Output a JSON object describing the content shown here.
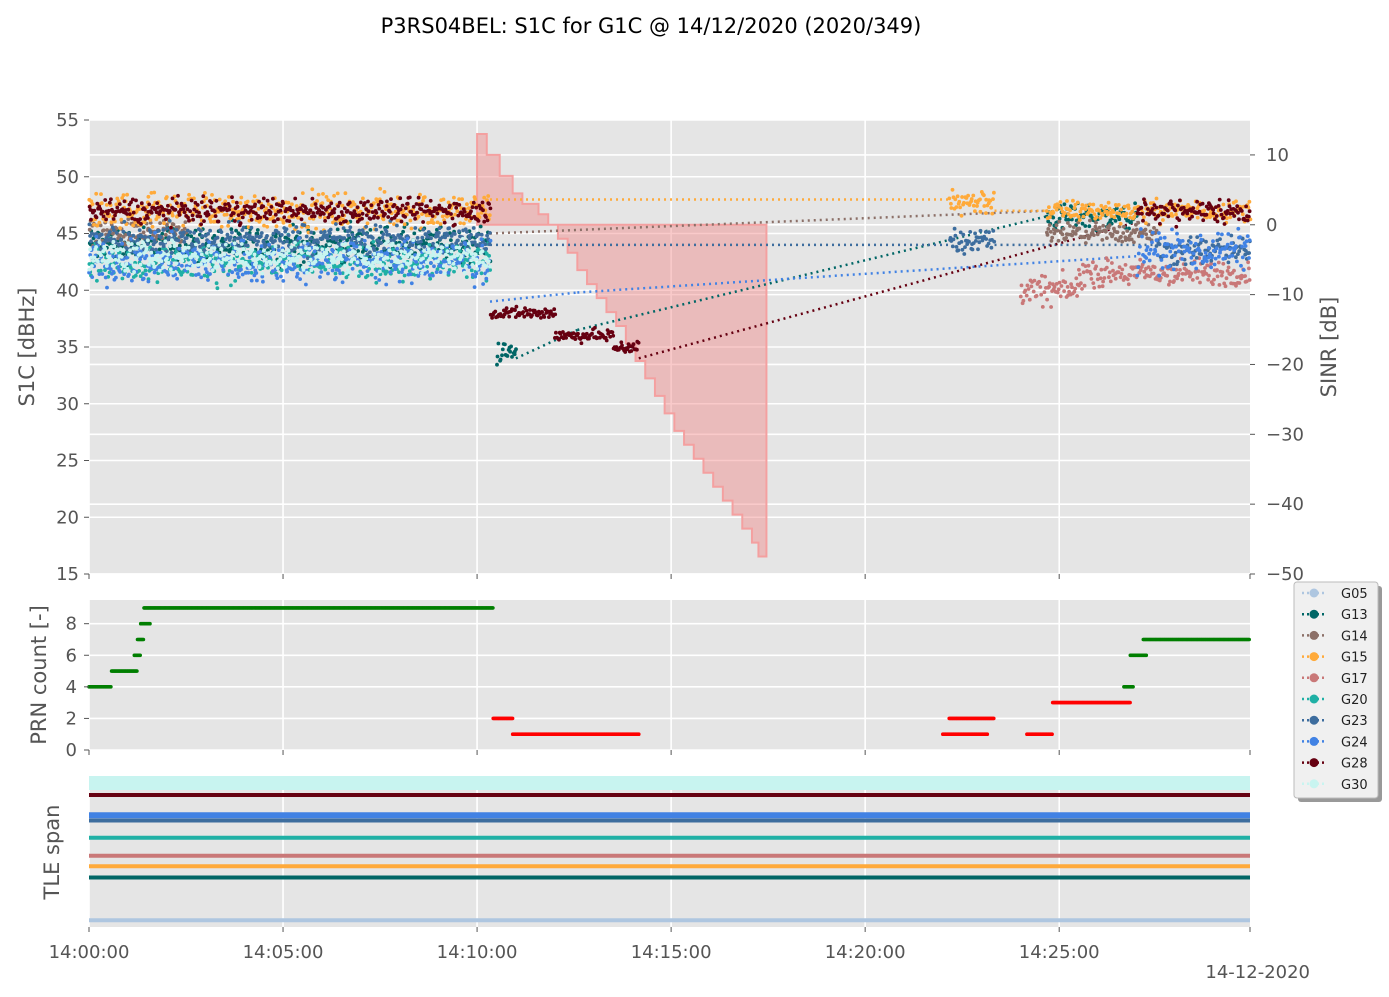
{
  "title": "P3RS04BEL: S1C for G1C @ 14/12/2020 (2020/349)",
  "date_label": "14-12-2020",
  "colors": {
    "background": "#e5e5e5",
    "grid": "#ffffff",
    "sinr_fill": "#f08080",
    "sinr_edge": "#f4a0a0",
    "prn_ok": "#007f00",
    "prn_low": "#ff0000"
  },
  "chart_data": [
    {
      "type": "scatter",
      "name": "s1c",
      "title": "P3RS04BEL: S1C for G1C @ 14/12/2020 (2020/349)",
      "ylabel": "S1C [dBHz]",
      "y2label": "SINR [dB]",
      "xlim": [
        "14:00:00",
        "14:29:55"
      ],
      "ylim": [
        15,
        55
      ],
      "y2lim": [
        -50,
        15
      ],
      "yticks": [
        "15",
        "20",
        "25",
        "30",
        "35",
        "40",
        "45",
        "50",
        "55"
      ],
      "y2ticks": [
        "−50",
        "−40",
        "−30",
        "−20",
        "−10",
        "0",
        "10"
      ],
      "grid": true,
      "series": [
        {
          "name": "G05",
          "color": "#aec6e0",
          "marker": "dot",
          "style": "dotted",
          "values": []
        },
        {
          "name": "G13",
          "color": "#006666",
          "style": "dotted",
          "bands": [
            {
              "t0": "14:00:00",
              "t1": "14:10:20",
              "c": 44.0,
              "s": 1.2
            },
            {
              "t0": "14:10:30",
              "t1": "14:11:00",
              "c": 34.5,
              "s": 0.8
            },
            {
              "t0": "14:24:40",
              "t1": "14:27:00",
              "c": 46.5,
              "s": 0.9
            }
          ],
          "connectors": [
            [
              [
                "14:11:00",
                34.0
              ],
              [
                "14:12:35",
                36.5
              ]
            ],
            [
              [
                "14:12:35",
                36.5
              ],
              [
                "14:24:40",
                46.5
              ]
            ]
          ]
        },
        {
          "name": "G14",
          "color": "#8c7068",
          "style": "dotted",
          "bands": [
            {
              "t0": "14:00:00",
              "t1": "14:02:30",
              "c": 45.0,
              "s": 0.9
            },
            {
              "t0": "14:24:40",
              "t1": "14:27:30",
              "c": 45.0,
              "s": 0.7
            }
          ],
          "connectors": [
            [
              [
                "14:10:20",
                45.0
              ],
              [
                "14:24:40",
                47.0
              ]
            ]
          ]
        },
        {
          "name": "G15",
          "color": "#ffaa3a",
          "style": "dotted",
          "bands": [
            {
              "t0": "14:00:00",
              "t1": "14:10:20",
              "c": 47.0,
              "s": 1.2
            },
            {
              "t0": "14:22:10",
              "t1": "14:23:20",
              "c": 47.8,
              "s": 0.9
            },
            {
              "t0": "14:24:40",
              "t1": "14:29:55",
              "c": 47.0,
              "s": 0.7
            }
          ],
          "connectors": [
            [
              [
                "14:10:20",
                48.0
              ],
              [
                "14:22:10",
                48.0
              ]
            ],
            [
              [
                "14:23:20",
                47.0
              ],
              [
                "14:24:40",
                47.0
              ]
            ]
          ]
        },
        {
          "name": "G17",
          "color": "#c97878",
          "style": "dotted",
          "bands": [
            {
              "t0": "14:24:00",
              "t1": "14:25:30",
              "c": 40.0,
              "s": 1.0
            },
            {
              "t0": "14:25:30",
              "t1": "14:29:55",
              "c": 41.5,
              "s": 0.9
            }
          ],
          "connectors": []
        },
        {
          "name": "G20",
          "color": "#1fb0a5",
          "style": "dotted",
          "bands": [
            {
              "t0": "14:00:00",
              "t1": "14:10:20",
              "c": 42.5,
              "s": 1.3
            }
          ],
          "connectors": []
        },
        {
          "name": "G23",
          "color": "#3d6d9e",
          "style": "dotted",
          "bands": [
            {
              "t0": "14:00:00",
              "t1": "14:10:20",
              "c": 44.5,
              "s": 1.0
            },
            {
              "t0": "14:22:10",
              "t1": "14:23:20",
              "c": 44.5,
              "s": 0.9
            },
            {
              "t0": "14:27:30",
              "t1": "14:29:55",
              "c": 43.5,
              "s": 1.0
            }
          ],
          "connectors": [
            [
              [
                "14:10:20",
                44.0
              ],
              [
                "14:22:10",
                44.0
              ]
            ],
            [
              [
                "14:23:20",
                44.0
              ],
              [
                "14:27:30",
                44.0
              ]
            ]
          ]
        },
        {
          "name": "G24",
          "color": "#4182e4",
          "style": "dotted",
          "bands": [
            {
              "t0": "14:00:00",
              "t1": "14:10:20",
              "c": 42.5,
              "s": 1.5
            },
            {
              "t0": "14:27:00",
              "t1": "14:29:55",
              "c": 43.5,
              "s": 1.3
            }
          ],
          "connectors": [
            [
              [
                "14:10:20",
                39.0
              ],
              [
                "14:12:35",
                39.8
              ]
            ],
            [
              [
                "14:12:35",
                39.8
              ],
              [
                "14:27:00",
                43.0
              ]
            ]
          ]
        },
        {
          "name": "G28",
          "color": "#660011",
          "style": "dotted",
          "bands": [
            {
              "t0": "14:00:00",
              "t1": "14:10:20",
              "c": 47.0,
              "s": 0.8
            },
            {
              "t0": "14:10:20",
              "t1": "14:11:30",
              "c": 38.0,
              "s": 0.4
            },
            {
              "t0": "14:11:30",
              "t1": "14:12:00",
              "c": 38.0,
              "s": 0.4
            },
            {
              "t0": "14:12:00",
              "t1": "14:13:30",
              "c": 36.0,
              "s": 0.4
            },
            {
              "t0": "14:13:30",
              "t1": "14:14:10",
              "c": 35.0,
              "s": 0.5
            },
            {
              "t0": "14:27:00",
              "t1": "14:29:55",
              "c": 47.0,
              "s": 0.8
            }
          ],
          "connectors": [
            [
              [
                "14:14:10",
                34.0
              ],
              [
                "14:27:00",
                46.0
              ]
            ]
          ]
        },
        {
          "name": "G30",
          "color": "#c8f4f0",
          "style": "dotted",
          "bands": [
            {
              "t0": "14:00:00",
              "t1": "14:10:20",
              "c": 43.0,
              "s": 1.0
            }
          ],
          "connectors": []
        }
      ],
      "sinr_step_area": {
        "axis": "y2",
        "color": "#f08080",
        "points": [
          [
            "14:10:00",
            13.0
          ],
          [
            "14:10:15",
            10.0
          ],
          [
            "14:10:35",
            7.0
          ],
          [
            "14:10:55",
            4.5
          ],
          [
            "14:11:10",
            3.0
          ],
          [
            "14:11:35",
            1.5
          ],
          [
            "14:11:50",
            0.0
          ],
          [
            "14:12:05",
            -2.0
          ],
          [
            "14:12:20",
            -4.0
          ],
          [
            "14:12:35",
            -6.5
          ],
          [
            "14:12:50",
            -8.5
          ],
          [
            "14:13:05",
            -10.5
          ],
          [
            "14:13:20",
            -12.5
          ],
          [
            "14:13:35",
            -14.5
          ],
          [
            "14:13:50",
            -17.0
          ],
          [
            "14:14:05",
            -19.5
          ],
          [
            "14:14:20",
            -22.0
          ],
          [
            "14:14:35",
            -24.5
          ],
          [
            "14:14:50",
            -27.0
          ],
          [
            "14:15:05",
            -29.5
          ],
          [
            "14:15:20",
            -31.5
          ],
          [
            "14:15:35",
            -33.5
          ],
          [
            "14:15:50",
            -35.5
          ],
          [
            "14:16:05",
            -37.5
          ],
          [
            "14:16:20",
            -39.5
          ],
          [
            "14:16:35",
            -41.5
          ],
          [
            "14:16:50",
            -43.5
          ],
          [
            "14:17:05",
            -45.5
          ],
          [
            "14:17:15",
            -47.5
          ]
        ],
        "top": 0.0
      }
    },
    {
      "type": "scatter",
      "name": "prn_count",
      "ylabel": "PRN count [-]",
      "xlim": [
        "14:00:00",
        "14:29:55"
      ],
      "ylim": [
        0,
        9.5
      ],
      "yticks": [
        "0",
        "2",
        "4",
        "6",
        "8"
      ],
      "grid": true,
      "runs": [
        {
          "t0": "14:00:00",
          "t1": "14:00:35",
          "v": 4,
          "c": "prn_ok"
        },
        {
          "t0": "14:00:35",
          "t1": "14:01:15",
          "v": 5,
          "c": "prn_ok"
        },
        {
          "t0": "14:01:10",
          "t1": "14:01:20",
          "v": 6,
          "c": "prn_ok"
        },
        {
          "t0": "14:01:15",
          "t1": "14:01:25",
          "v": 7,
          "c": "prn_ok"
        },
        {
          "t0": "14:01:20",
          "t1": "14:01:35",
          "v": 8,
          "c": "prn_ok"
        },
        {
          "t0": "14:01:25",
          "t1": "14:10:25",
          "v": 9,
          "c": "prn_ok"
        },
        {
          "t0": "14:10:25",
          "t1": "14:10:55",
          "v": 2,
          "c": "prn_low"
        },
        {
          "t0": "14:10:55",
          "t1": "14:14:10",
          "v": 1,
          "c": "prn_low"
        },
        {
          "t0": "14:22:10",
          "t1": "14:23:20",
          "v": 2,
          "c": "prn_low"
        },
        {
          "t0": "14:22:00",
          "t1": "14:23:10",
          "v": 1,
          "c": "prn_low"
        },
        {
          "t0": "14:24:10",
          "t1": "14:24:50",
          "v": 1,
          "c": "prn_low"
        },
        {
          "t0": "14:24:50",
          "t1": "14:26:50",
          "v": 3,
          "c": "prn_low"
        },
        {
          "t0": "14:26:40",
          "t1": "14:26:55",
          "v": 4,
          "c": "prn_ok"
        },
        {
          "t0": "14:26:50",
          "t1": "14:27:15",
          "v": 6,
          "c": "prn_ok"
        },
        {
          "t0": "14:27:10",
          "t1": "14:29:55",
          "v": 7,
          "c": "prn_ok"
        }
      ]
    },
    {
      "type": "line",
      "name": "tle_span",
      "ylabel": "TLE span",
      "xlim": [
        "14:00:00",
        "14:29:55"
      ],
      "grid": true,
      "lines": [
        {
          "name": "G30",
          "color": "#c8f4f0",
          "level": 0.96,
          "width": 14
        },
        {
          "name": "G28",
          "color": "#660011",
          "level": 0.88,
          "width": 4
        },
        {
          "name": "G24",
          "color": "#4182e4",
          "level": 0.745,
          "width": 6
        },
        {
          "name": "G23",
          "color": "#3d6d9e",
          "level": 0.71,
          "width": 4
        },
        {
          "name": "G20",
          "color": "#1fb0a5",
          "level": 0.595,
          "width": 4
        },
        {
          "name": "G17",
          "color": "#c97878",
          "level": 0.475,
          "width": 4
        },
        {
          "name": "G15",
          "color": "#ffaa3a",
          "level": 0.405,
          "width": 4
        },
        {
          "name": "G13",
          "color": "#006666",
          "level": 0.33,
          "width": 4
        },
        {
          "name": "G05",
          "color": "#aec6e0",
          "level": 0.045,
          "width": 4
        }
      ]
    }
  ],
  "xticks": [
    "14:00:00",
    "14:05:00",
    "14:10:00",
    "14:15:00",
    "14:20:00",
    "14:25:00"
  ],
  "legend": {
    "placement": "right",
    "entries": [
      {
        "label": "G05",
        "color": "#aec6e0"
      },
      {
        "label": "G13",
        "color": "#006666"
      },
      {
        "label": "G14",
        "color": "#8c7068"
      },
      {
        "label": "G15",
        "color": "#ffaa3a"
      },
      {
        "label": "G17",
        "color": "#c97878"
      },
      {
        "label": "G20",
        "color": "#1fb0a5"
      },
      {
        "label": "G23",
        "color": "#3d6d9e"
      },
      {
        "label": "G24",
        "color": "#4182e4"
      },
      {
        "label": "G28",
        "color": "#660011"
      },
      {
        "label": "G30",
        "color": "#c8f4f0"
      }
    ]
  }
}
